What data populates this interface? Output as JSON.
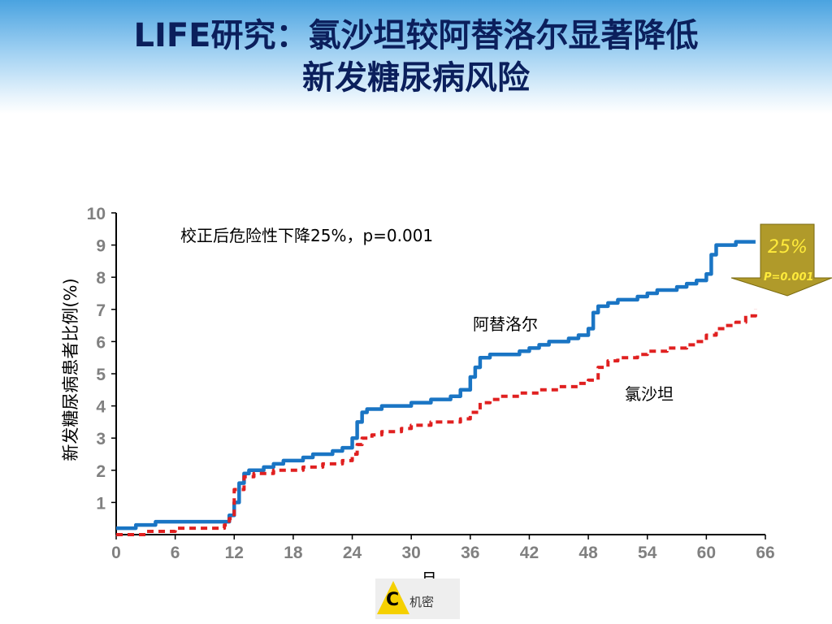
{
  "title": {
    "line1": "LIFE研究：氯沙坦较阿替洛尔显著降低",
    "line2": "新发糖尿病风险"
  },
  "annotation": "校正后危险性下降25%，p=0.001",
  "badge": {
    "percent": "25%",
    "p": "P=0.001"
  },
  "confidential": {
    "letter": "C",
    "label": "机密"
  },
  "chart_data": {
    "type": "line",
    "xlabel": "月",
    "ylabel": "新发糖尿病患者比例(%)",
    "xlim": [
      0,
      66
    ],
    "ylim": [
      0,
      10
    ],
    "x_ticks": [
      "0",
      "6",
      "12",
      "18",
      "24",
      "30",
      "36",
      "42",
      "48",
      "54",
      "60",
      "66"
    ],
    "y_ticks": [
      "1",
      "2",
      "3",
      "4",
      "5",
      "6",
      "7",
      "8",
      "9",
      "10"
    ],
    "series": [
      {
        "name": "阿替洛尔",
        "color": "#1a75c4",
        "style": "solid",
        "x": [
          0,
          1,
          2,
          2,
          4,
          4,
          11,
          11.5,
          12,
          12.5,
          13,
          13.5,
          14,
          15,
          16,
          17,
          18,
          19,
          20,
          21,
          22,
          23,
          24,
          24.5,
          25,
          25.5,
          26,
          27,
          28,
          29,
          30,
          31,
          32,
          33,
          34,
          35,
          36,
          36.5,
          37,
          38,
          39,
          40,
          41,
          42,
          43,
          44,
          45,
          46,
          47,
          48,
          48.5,
          49,
          50,
          51,
          52,
          53,
          54,
          55,
          56,
          57,
          58,
          59,
          60,
          60.5,
          61,
          62,
          63,
          64,
          65
        ],
        "y": [
          0.2,
          0.2,
          0.2,
          0.3,
          0.3,
          0.4,
          0.4,
          0.6,
          1.0,
          1.6,
          1.9,
          2.0,
          2.0,
          2.1,
          2.2,
          2.3,
          2.3,
          2.4,
          2.5,
          2.5,
          2.6,
          2.7,
          3.0,
          3.5,
          3.8,
          3.9,
          3.9,
          4.0,
          4.0,
          4.0,
          4.1,
          4.1,
          4.2,
          4.2,
          4.3,
          4.5,
          4.9,
          5.2,
          5.5,
          5.6,
          5.6,
          5.6,
          5.7,
          5.8,
          5.9,
          6.0,
          6.0,
          6.1,
          6.2,
          6.4,
          6.9,
          7.1,
          7.2,
          7.3,
          7.3,
          7.4,
          7.5,
          7.6,
          7.6,
          7.7,
          7.8,
          7.9,
          8.1,
          8.7,
          9.0,
          9.0,
          9.1,
          9.1,
          9.1
        ]
      },
      {
        "name": "氯沙坦",
        "color": "#e02020",
        "style": "dashed",
        "x": [
          0,
          2,
          3,
          5,
          6,
          11,
          11.5,
          12,
          13,
          14,
          15,
          16,
          17,
          18,
          19,
          20,
          21,
          22,
          23,
          24,
          24.5,
          25,
          26,
          27,
          28,
          29,
          30,
          31,
          32,
          33,
          34,
          35,
          36,
          37,
          38,
          39,
          40,
          41,
          42,
          43,
          44,
          45,
          46,
          47,
          48,
          49,
          50,
          51,
          52,
          53,
          54,
          55,
          56,
          57,
          58,
          59,
          60,
          61,
          62,
          63,
          64,
          65
        ],
        "y": [
          0.0,
          0.0,
          0.1,
          0.1,
          0.2,
          0.3,
          0.5,
          1.4,
          1.8,
          1.9,
          1.9,
          2.0,
          2.0,
          2.0,
          2.1,
          2.1,
          2.2,
          2.2,
          2.3,
          2.5,
          2.8,
          3.0,
          3.1,
          3.2,
          3.2,
          3.3,
          3.4,
          3.4,
          3.5,
          3.5,
          3.5,
          3.6,
          3.8,
          4.1,
          4.2,
          4.3,
          4.3,
          4.4,
          4.4,
          4.5,
          4.5,
          4.6,
          4.6,
          4.7,
          4.8,
          5.2,
          5.4,
          5.5,
          5.5,
          5.6,
          5.7,
          5.7,
          5.8,
          5.8,
          5.9,
          6.0,
          6.2,
          6.4,
          6.5,
          6.6,
          6.8,
          7.0
        ]
      }
    ]
  }
}
